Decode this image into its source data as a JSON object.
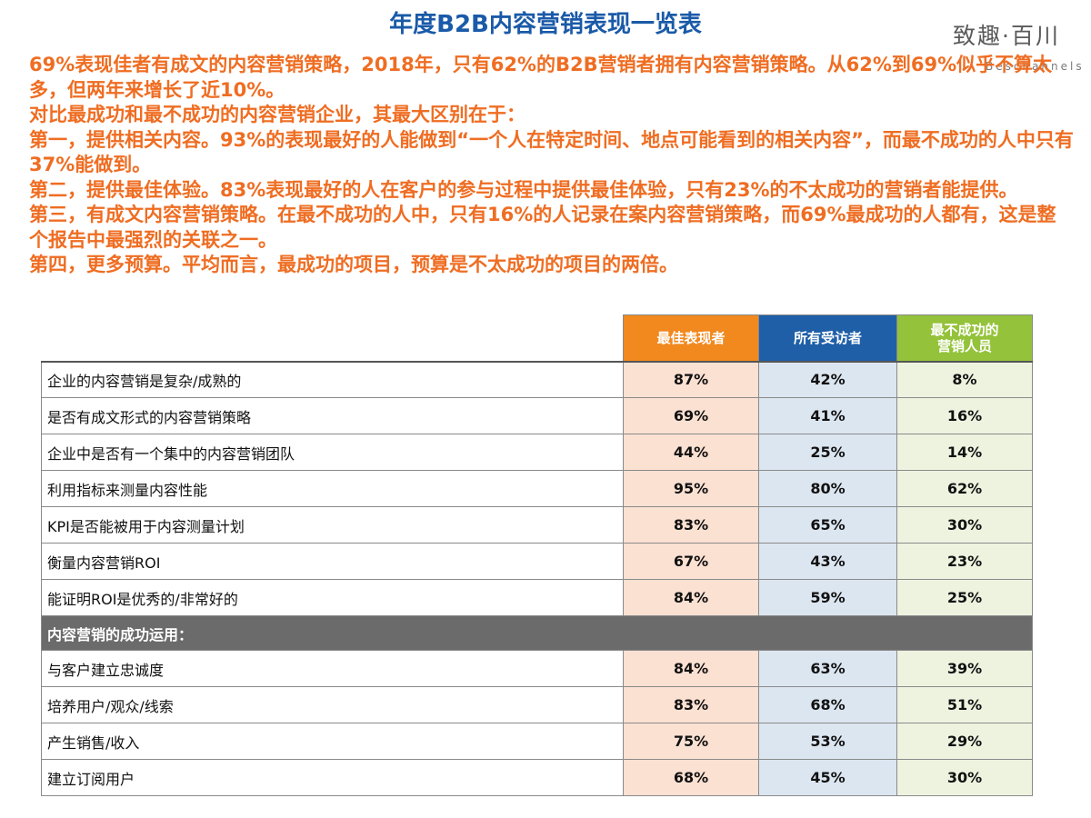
{
  "title": "年度B2B内容营销表现一览表",
  "logo": {
    "main": "致趣·百川",
    "sub": "Beschannels"
  },
  "paragraphs": [
    "69%表现佳者有成文的内容营销策略，2018年，只有62%的B2B营销者拥有内容营销策略。从62%到69%似乎不算太多，但两年来增长了近10%。",
    "对比最成功和最不成功的内容营销企业，其最大区别在于：",
    "第一，提供相关内容。93%的表现最好的人能做到“一个人在特定时间、地点可能看到的相关内容”，而最不成功的人中只有37%能做到。",
    "第二，提供最佳体验。83%表现最好的人在客户的参与过程中提供最佳体验，只有23%的不太成功的营销者能提供。",
    "第三，有成文内容营销策略。在最不成功的人中，只有16%的人记录在案内容营销策略，而69%最成功的人都有，这是整个报告中最强烈的关联之一。",
    "第四，更多预算。平均而言，最成功的项目，预算是不太成功的项目的两倍。"
  ],
  "table": {
    "headers": {
      "best": "最佳表现者",
      "all": "所有受访者",
      "least_line1": "最不成功的",
      "least_line2": "营销人员"
    },
    "rows": [
      {
        "label": "企业的内容营销是复杂/成熟的",
        "best": "87%",
        "all": "42%",
        "least": "8%"
      },
      {
        "label": "是否有成文形式的内容营销策略",
        "best": "69%",
        "all": "41%",
        "least": "16%"
      },
      {
        "label": "企业中是否有一个集中的内容营销团队",
        "best": "44%",
        "all": "25%",
        "least": "14%"
      },
      {
        "label": "利用指标来测量内容性能",
        "best": "95%",
        "all": "80%",
        "least": "62%"
      },
      {
        "label": "KPI是否能被用于内容测量计划",
        "best": "83%",
        "all": "65%",
        "least": "30%"
      },
      {
        "label": "衡量内容营销ROI",
        "best": "67%",
        "all": "43%",
        "least": "23%"
      },
      {
        "label": "能证明ROI是优秀的/非常好的",
        "best": "84%",
        "all": "59%",
        "least": "25%"
      }
    ],
    "section_label": "内容营销的成功运用：",
    "section_rows": [
      {
        "label": "与客户建立忠诚度",
        "best": "84%",
        "all": "63%",
        "least": "39%"
      },
      {
        "label": "培养用户/观众/线索",
        "best": "83%",
        "all": "68%",
        "least": "51%"
      },
      {
        "label": "产生销售/收入",
        "best": "75%",
        "all": "53%",
        "least": "29%"
      },
      {
        "label": "建立订阅用户",
        "best": "68%",
        "all": "45%",
        "least": "30%"
      }
    ]
  }
}
